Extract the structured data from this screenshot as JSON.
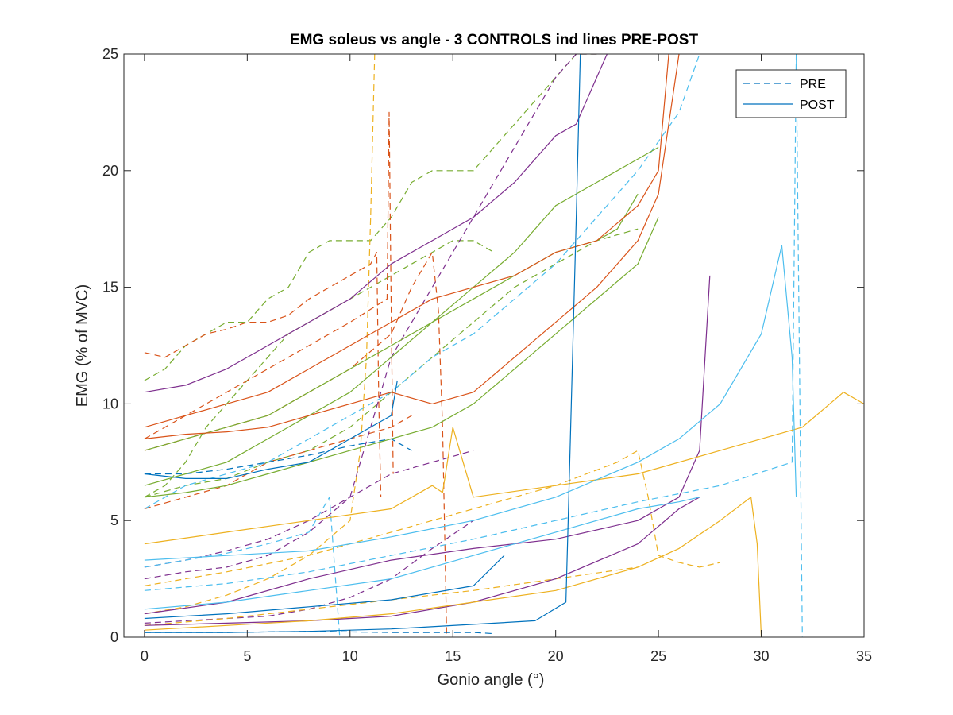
{
  "chart_data": {
    "type": "line",
    "title": "EMG soleus vs angle - 3 CONTROLS ind lines PRE-POST",
    "xlabel": "Gonio angle (°)",
    "ylabel": "EMG (% of MVC)",
    "xlim": [
      -1,
      35
    ],
    "ylim": [
      0,
      25
    ],
    "x_ticks": [
      "0",
      "5",
      "10",
      "15",
      "20",
      "25",
      "30",
      "35"
    ],
    "y_ticks": [
      "0",
      "5",
      "10",
      "15",
      "20",
      "25"
    ],
    "grid": false,
    "legend_position": "top-right",
    "legend": [
      {
        "label": "PRE",
        "dash": "dashed",
        "color": "#0072BD"
      },
      {
        "label": "POST",
        "dash": "solid",
        "color": "#0072BD"
      }
    ],
    "series": [
      {
        "color": "#77AC30",
        "dash": "dashed",
        "x": [
          0,
          1,
          2,
          3,
          4,
          5,
          6,
          7,
          8,
          9,
          10,
          11,
          12,
          13,
          14,
          15,
          16,
          17,
          18,
          19,
          20,
          21,
          22
        ],
        "y": [
          11,
          11.5,
          12.5,
          13,
          13.5,
          13.5,
          14.5,
          15,
          16.5,
          17,
          17,
          17,
          18,
          19.5,
          20,
          20,
          20,
          21,
          22,
          23,
          24,
          25,
          25
        ]
      },
      {
        "color": "#77AC30",
        "dash": "dashed",
        "x": [
          0,
          1,
          2,
          3,
          4,
          5,
          6,
          7,
          8,
          9,
          10,
          11,
          12,
          13,
          14,
          15,
          16,
          17
        ],
        "y": [
          6,
          6.5,
          7.5,
          9,
          10,
          11,
          12,
          13,
          13.5,
          14,
          14.5,
          15,
          15.5,
          16,
          16.5,
          17,
          17,
          16.5
        ]
      },
      {
        "color": "#77AC30",
        "dash": "dashed",
        "x": [
          0,
          2,
          4,
          6,
          8,
          10,
          12,
          14,
          16,
          18,
          20,
          22,
          24
        ],
        "y": [
          6,
          6.5,
          6.8,
          7.5,
          8,
          9,
          10.5,
          12,
          13.5,
          15,
          16,
          17,
          17.5
        ]
      },
      {
        "color": "#D95319",
        "dash": "dashed",
        "x": [
          0,
          1,
          2,
          3,
          4,
          5,
          6,
          7,
          8,
          9,
          10,
          11,
          11.3,
          11.4,
          11.5
        ],
        "y": [
          12.2,
          12,
          12.5,
          13,
          13.2,
          13.5,
          13.5,
          13.8,
          14.5,
          15,
          15.5,
          16,
          16.5,
          10,
          6
        ]
      },
      {
        "color": "#D95319",
        "dash": "dashed",
        "x": [
          0,
          2,
          4,
          6,
          8,
          10,
          11.8,
          11.9,
          12,
          12.1
        ],
        "y": [
          8.5,
          9.5,
          10.5,
          11.5,
          12.5,
          13.5,
          14.5,
          22.5,
          14,
          7
        ]
      },
      {
        "color": "#D95319",
        "dash": "dashed",
        "x": [
          0,
          2,
          4,
          6,
          8,
          10,
          12,
          13,
          14,
          14.3,
          14.5,
          14.7
        ],
        "y": [
          8,
          8.5,
          9,
          9.5,
          10.5,
          11.5,
          13,
          15,
          16.5,
          14,
          9,
          0
        ]
      },
      {
        "color": "#D95319",
        "dash": "dashed",
        "x": [
          0,
          2,
          4,
          6,
          8,
          10,
          12,
          13
        ],
        "y": [
          5.5,
          6,
          6.5,
          7.5,
          8,
          8.5,
          9,
          9.5
        ]
      },
      {
        "color": "#7E2F8E",
        "dash": "dashed",
        "x": [
          0,
          2,
          4,
          6,
          8,
          10,
          12,
          14,
          16
        ],
        "y": [
          3,
          3.3,
          3.7,
          4.2,
          5,
          6,
          7,
          7.5,
          8
        ]
      },
      {
        "color": "#7E2F8E",
        "dash": "dashed",
        "x": [
          0,
          2,
          4,
          6,
          8,
          10,
          11,
          12,
          14,
          16,
          18,
          20,
          21,
          22
        ],
        "y": [
          2.5,
          2.8,
          3,
          3.5,
          4.5,
          6,
          9,
          12,
          15,
          18,
          21,
          24,
          25,
          25
        ]
      },
      {
        "color": "#7E2F8E",
        "dash": "dashed",
        "x": [
          0,
          2,
          4,
          6,
          8,
          10,
          12,
          14,
          16
        ],
        "y": [
          0.6,
          0.7,
          0.8,
          0.9,
          1.2,
          1.7,
          2.5,
          3.8,
          5
        ]
      },
      {
        "color": "#EDB120",
        "dash": "dashed",
        "x": [
          0,
          2,
          4,
          6,
          8,
          10,
          10.5,
          10.8,
          11,
          11.2
        ],
        "y": [
          1,
          1.3,
          1.8,
          2.5,
          3.5,
          5,
          8,
          12,
          18,
          25
        ]
      },
      {
        "color": "#EDB120",
        "dash": "dashed",
        "x": [
          0,
          4,
          8,
          12,
          16,
          20,
          23,
          24,
          24.5,
          25,
          26,
          27,
          28
        ],
        "y": [
          2.2,
          2.8,
          3.5,
          4.5,
          5.5,
          6.5,
          7.5,
          8,
          6,
          3.5,
          3.2,
          3,
          3.2
        ]
      },
      {
        "color": "#EDB120",
        "dash": "dashed",
        "x": [
          0,
          4,
          8,
          12,
          16,
          20,
          24
        ],
        "y": [
          0.5,
          0.8,
          1.2,
          1.6,
          2,
          2.5,
          3
        ]
      },
      {
        "color": "#4DBEEE",
        "dash": "dashed",
        "x": [
          0,
          2,
          4,
          6,
          8,
          10,
          12,
          14,
          16,
          18,
          20,
          22,
          24,
          26,
          27
        ],
        "y": [
          5.5,
          6.5,
          7,
          7.5,
          8.5,
          9.5,
          10.5,
          12,
          13,
          14.5,
          16,
          18,
          20,
          22.5,
          25
        ]
      },
      {
        "color": "#4DBEEE",
        "dash": "dashed",
        "x": [
          0,
          4,
          8,
          12,
          16,
          20,
          24,
          28,
          31.5,
          31.7,
          32
        ],
        "y": [
          2,
          2.3,
          2.8,
          3.5,
          4.2,
          5,
          5.8,
          6.5,
          7.5,
          25,
          0
        ]
      },
      {
        "color": "#4DBEEE",
        "dash": "dashed",
        "x": [
          0,
          2,
          4,
          6,
          8,
          9,
          9.5
        ],
        "y": [
          3,
          3.3,
          3.6,
          4,
          4.5,
          6,
          0
        ]
      },
      {
        "color": "#0072BD",
        "dash": "dashed",
        "x": [
          0,
          2,
          4,
          6,
          8,
          10,
          12,
          13
        ],
        "y": [
          7,
          7,
          7.2,
          7.5,
          7.8,
          8.2,
          8.5,
          8
        ]
      },
      {
        "color": "#0072BD",
        "dash": "dashed",
        "x": [
          0,
          4,
          8,
          12,
          16,
          17
        ],
        "y": [
          0.2,
          0.2,
          0.25,
          0.2,
          0.2,
          0.15
        ]
      },
      {
        "color": "#77AC30",
        "dash": "solid",
        "x": [
          0,
          2,
          4,
          6,
          8,
          10,
          12,
          14,
          16,
          18,
          20,
          22,
          24,
          25
        ],
        "y": [
          6.5,
          7,
          7.5,
          8.5,
          9.5,
          10.5,
          12,
          13.5,
          15,
          16.5,
          18.5,
          19.5,
          20.5,
          21
        ]
      },
      {
        "color": "#77AC30",
        "dash": "solid",
        "x": [
          0,
          2,
          4,
          6,
          8,
          10,
          12,
          14,
          16,
          18,
          20,
          22,
          23,
          24
        ],
        "y": [
          8,
          8.5,
          9,
          9.5,
          10.5,
          11.5,
          12.5,
          13.5,
          14.5,
          15.5,
          16.5,
          17,
          17.5,
          19
        ]
      },
      {
        "color": "#77AC30",
        "dash": "solid",
        "x": [
          0,
          2,
          4,
          6,
          8,
          10,
          12,
          14,
          16,
          18,
          20,
          22,
          24,
          25
        ],
        "y": [
          6,
          6.2,
          6.5,
          7,
          7.5,
          8,
          8.5,
          9,
          10,
          11.5,
          13,
          14.5,
          16,
          18
        ]
      },
      {
        "color": "#D95319",
        "dash": "solid",
        "x": [
          0,
          2,
          4,
          6,
          8,
          10,
          12,
          14,
          16,
          18,
          20,
          22,
          24,
          25,
          25.5
        ],
        "y": [
          9,
          9.5,
          10,
          10.5,
          11.5,
          12.5,
          13.5,
          14.5,
          15,
          15.5,
          16.5,
          17,
          18.5,
          20,
          25
        ]
      },
      {
        "color": "#D95319",
        "dash": "solid",
        "x": [
          0,
          2,
          4,
          6,
          8,
          10,
          12,
          14,
          16,
          18,
          20,
          22,
          24,
          25,
          26
        ],
        "y": [
          8.5,
          8.7,
          8.8,
          9,
          9.5,
          10,
          10.5,
          10,
          10.5,
          12,
          13.5,
          15,
          17,
          19,
          25
        ]
      },
      {
        "color": "#7E2F8E",
        "dash": "solid",
        "x": [
          0,
          2,
          4,
          6,
          8,
          10,
          12,
          14,
          16,
          18,
          20,
          21,
          22,
          22.5
        ],
        "y": [
          10.5,
          10.8,
          11.5,
          12.5,
          13.5,
          14.5,
          16,
          17,
          18,
          19.5,
          21.5,
          22,
          24,
          25
        ]
      },
      {
        "color": "#7E2F8E",
        "dash": "solid",
        "x": [
          0,
          4,
          8,
          12,
          16,
          20,
          24,
          26,
          27,
          27.5
        ],
        "y": [
          1,
          1.5,
          2.5,
          3.3,
          3.8,
          4.2,
          5,
          6,
          8,
          15.5
        ]
      },
      {
        "color": "#7E2F8E",
        "dash": "solid",
        "x": [
          0,
          4,
          8,
          12,
          16,
          20,
          24,
          26,
          27
        ],
        "y": [
          0.5,
          0.6,
          0.7,
          0.9,
          1.5,
          2.5,
          4,
          5.5,
          6
        ]
      },
      {
        "color": "#EDB120",
        "dash": "solid",
        "x": [
          0,
          4,
          8,
          12,
          14,
          14.5,
          15,
          16,
          20,
          24,
          28,
          32,
          34,
          35
        ],
        "y": [
          4,
          4.5,
          5,
          5.5,
          6.5,
          6.2,
          9,
          6,
          6.5,
          7,
          8,
          9,
          10.5,
          10
        ]
      },
      {
        "color": "#EDB120",
        "dash": "solid",
        "x": [
          0,
          4,
          8,
          12,
          16,
          20,
          24,
          26,
          28,
          29.5,
          29.8,
          30
        ],
        "y": [
          0.3,
          0.5,
          0.7,
          1,
          1.5,
          2,
          3,
          3.8,
          5,
          6,
          4,
          0
        ]
      },
      {
        "color": "#4DBEEE",
        "dash": "solid",
        "x": [
          0,
          4,
          8,
          12,
          16,
          20,
          24,
          26,
          28,
          30,
          31,
          31.5,
          31.7
        ],
        "y": [
          3.3,
          3.5,
          3.7,
          4.3,
          5,
          6,
          7.5,
          8.5,
          10,
          13,
          16.8,
          12,
          6
        ]
      },
      {
        "color": "#4DBEEE",
        "dash": "solid",
        "x": [
          0,
          4,
          8,
          12,
          16,
          20,
          24,
          26,
          27
        ],
        "y": [
          1.2,
          1.5,
          2,
          2.5,
          3.5,
          4.5,
          5.5,
          5.8,
          6
        ]
      },
      {
        "color": "#0072BD",
        "dash": "solid",
        "x": [
          0,
          2,
          4,
          6,
          8,
          10,
          12,
          12.3
        ],
        "y": [
          7,
          6.8,
          6.8,
          7.2,
          7.5,
          8.5,
          9.5,
          11
        ]
      },
      {
        "color": "#0072BD",
        "dash": "solid",
        "x": [
          0,
          4,
          8,
          12,
          16,
          19,
          20.5,
          20.7,
          21,
          21.2
        ],
        "y": [
          0.2,
          0.2,
          0.25,
          0.35,
          0.55,
          0.7,
          1.5,
          8,
          18,
          25
        ]
      },
      {
        "color": "#0072BD",
        "dash": "solid",
        "x": [
          0,
          4,
          8,
          12,
          16,
          17.5
        ],
        "y": [
          0.8,
          1,
          1.3,
          1.6,
          2.2,
          3.5
        ]
      }
    ]
  }
}
